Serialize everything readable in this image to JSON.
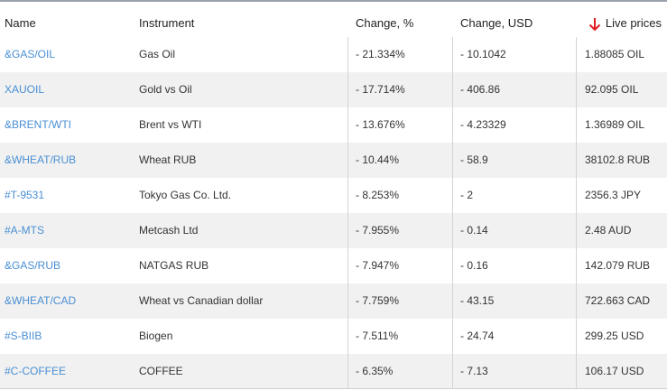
{
  "header": {
    "columns": [
      "Name",
      "Instrument",
      "Change, %",
      "Change, USD",
      "Live prices"
    ]
  },
  "rows": [
    [
      "&GAS/OIL",
      "Gas Oil",
      "- 21.334%",
      "- 10.1042",
      "1.88085 OIL"
    ],
    [
      "XAUOIL",
      "Gold vs Oil",
      "- 17.714%",
      "- 406.86",
      "92.095 OIL"
    ],
    [
      "&BRENT/WTI",
      "Brent vs WTI",
      "- 13.676%",
      "- 4.23329",
      "1.36989 OIL"
    ],
    [
      "&WHEAT/RUB",
      "Wheat RUB",
      "- 10.44%",
      "- 58.9",
      "38102.8 RUB"
    ],
    [
      "#T-9531",
      "Tokyo Gas Co. Ltd.",
      "- 8.253%",
      "- 2",
      "2356.3 JPY"
    ],
    [
      "#A-MTS",
      "Metcash Ltd",
      "- 7.955%",
      "- 0.14",
      "2.48 AUD"
    ],
    [
      "&GAS/RUB",
      "NATGAS RUB",
      "- 7.947%",
      "- 0.16",
      "142.079 RUB"
    ],
    [
      "&WHEAT/CAD",
      "Wheat vs Canadian dollar",
      "- 7.759%",
      "- 43.15",
      "722.663 CAD"
    ],
    [
      "#S-BIIB",
      "Biogen",
      "- 7.511%",
      "- 24.74",
      "299.25 USD"
    ],
    [
      "#C-COFFEE",
      "COFFEE",
      "- 6.35%",
      "- 7.13",
      "106.17 USD"
    ]
  ]
}
